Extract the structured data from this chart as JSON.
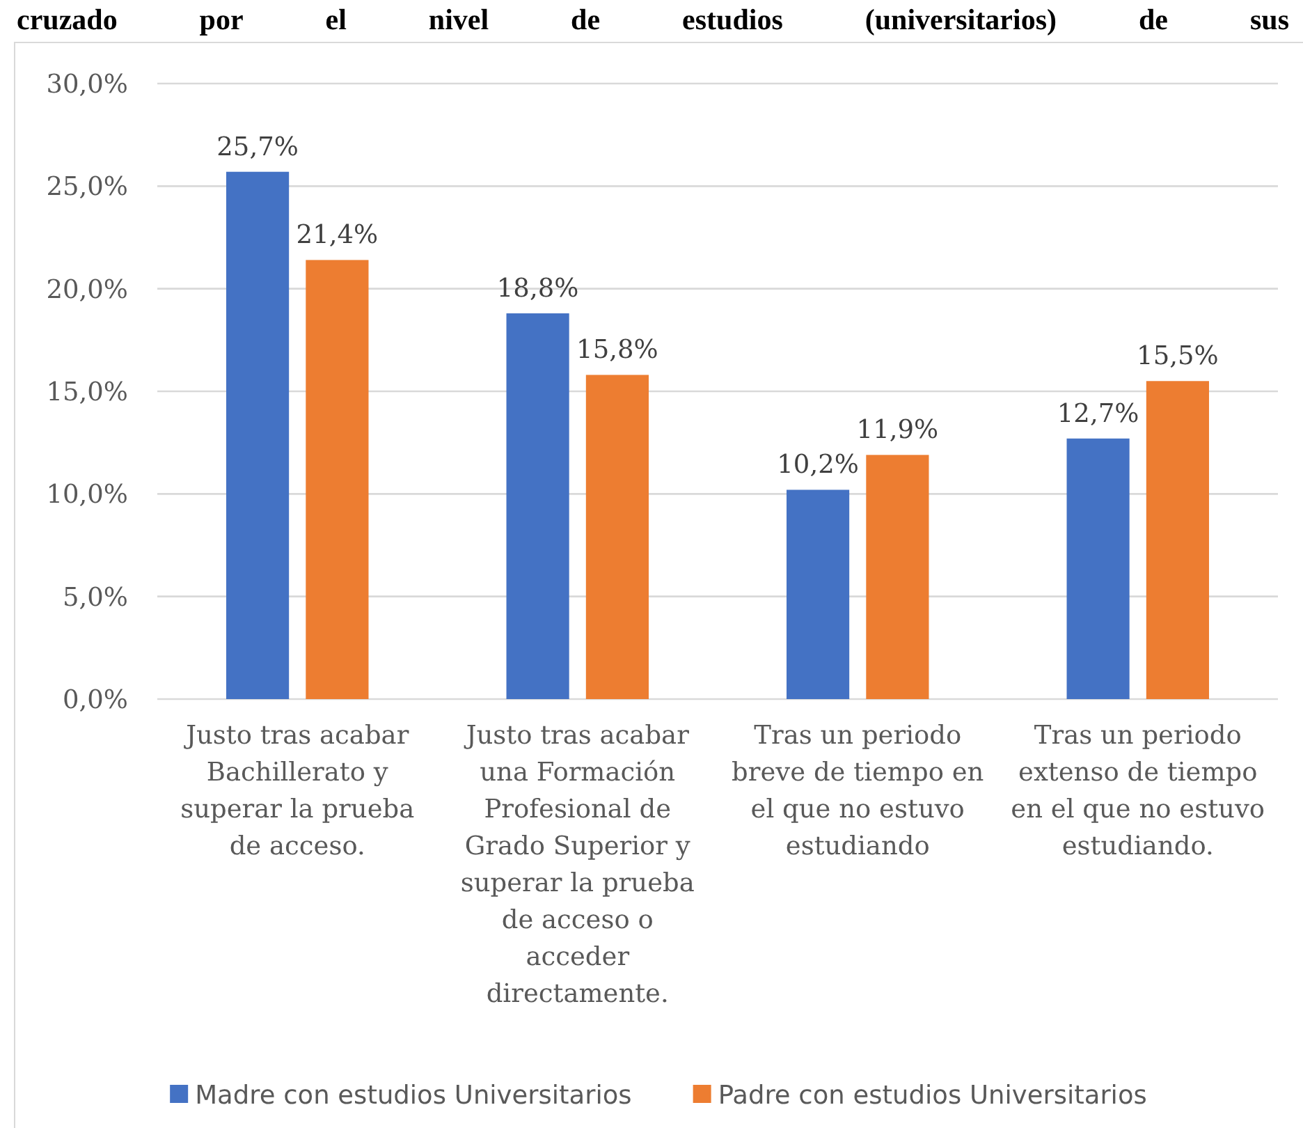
{
  "chart_data": {
    "type": "bar",
    "title": "cruzado por el nivel de estudios (universitarios) de sus",
    "categories": [
      "Justo tras acabar Bachillerato y superar la prueba de acceso.",
      "Justo tras acabar una Formación Profesional de Grado Superior y superar la prueba de acceso o acceder directamente.",
      "Tras un periodo breve de tiempo en el que no estuvo estudiando",
      "Tras un periodo extenso de tiempo en el que no estuvo estudiando."
    ],
    "series": [
      {
        "name": "Madre con estudios Universitarios",
        "color": "#4472c4",
        "values": [
          25.7,
          18.8,
          10.2,
          12.7
        ],
        "value_labels": [
          "25,7%",
          "18,8%",
          "10,2%",
          "12,7%"
        ]
      },
      {
        "name": "Padre con estudios Universitarios",
        "color": "#ed7d31",
        "values": [
          21.4,
          15.8,
          11.9,
          15.5
        ],
        "value_labels": [
          "21,4%",
          "15,8%",
          "11,9%",
          "15,5%"
        ]
      }
    ],
    "ylim": [
      0,
      30
    ],
    "yticks": [
      {
        "value": 0,
        "label": "0,0%"
      },
      {
        "value": 5,
        "label": "5,0%"
      },
      {
        "value": 10,
        "label": "10,0%"
      },
      {
        "value": 15,
        "label": "15,0%"
      },
      {
        "value": 20,
        "label": "20,0%"
      },
      {
        "value": 25,
        "label": "25,0%"
      },
      {
        "value": 30,
        "label": "30,0%"
      }
    ],
    "grid": "y",
    "legend": "bottom"
  }
}
